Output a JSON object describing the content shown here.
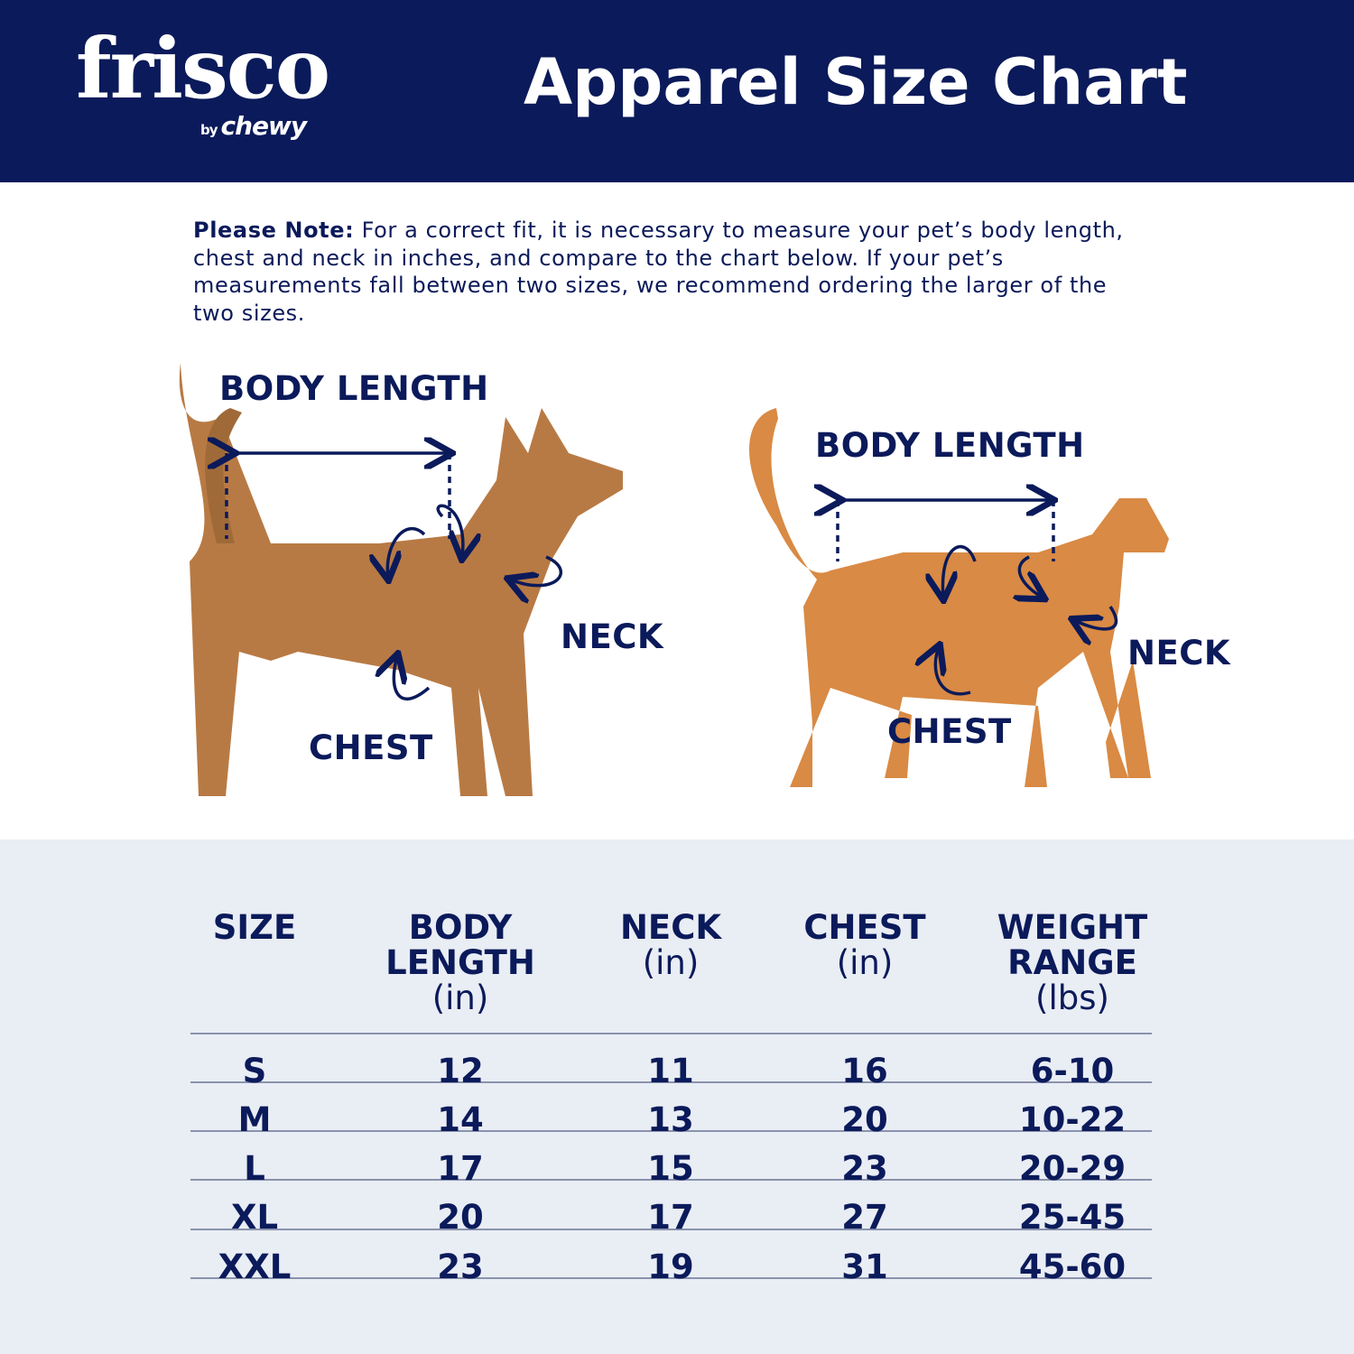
{
  "header": {
    "logo": {
      "brand": "frisco",
      "sub_by": "by",
      "sub_brand": "chewy"
    },
    "title": "Apparel Size Chart"
  },
  "note": {
    "label": "Please Note:",
    "text": " For a correct fit, it is necessary to measure your pet’s body length, chest and neck in inches, and compare to the chart below. If your pet’s measurements fall between two sizes, we recommend ordering the larger of the two sizes."
  },
  "diagram": {
    "dog": {
      "body_length": "BODY LENGTH",
      "neck": "NECK",
      "chest": "CHEST"
    },
    "cat": {
      "body_length": "BODY LENGTH",
      "neck": "NECK",
      "chest": "CHEST"
    }
  },
  "colors": {
    "navy": "#0b1a5a",
    "table_bg": "#e9edf4",
    "dog": "#b87a44",
    "cat": "#d98a44"
  },
  "table": {
    "headers": [
      {
        "title": "SIZE",
        "unit": ""
      },
      {
        "title": "BODY LENGTH",
        "unit": "(in)"
      },
      {
        "title": "NECK",
        "unit": "(in)"
      },
      {
        "title": "CHEST",
        "unit": "(in)"
      },
      {
        "title": "WEIGHT RANGE",
        "unit": "(lbs)"
      }
    ],
    "rows": [
      [
        "S",
        "12",
        "11",
        "16",
        "6-10"
      ],
      [
        "M",
        "14",
        "13",
        "20",
        "10-22"
      ],
      [
        "L",
        "17",
        "15",
        "23",
        "20-29"
      ],
      [
        "XL",
        "20",
        "17",
        "27",
        "25-45"
      ],
      [
        "XXL",
        "23",
        "19",
        "31",
        "45-60"
      ]
    ]
  }
}
